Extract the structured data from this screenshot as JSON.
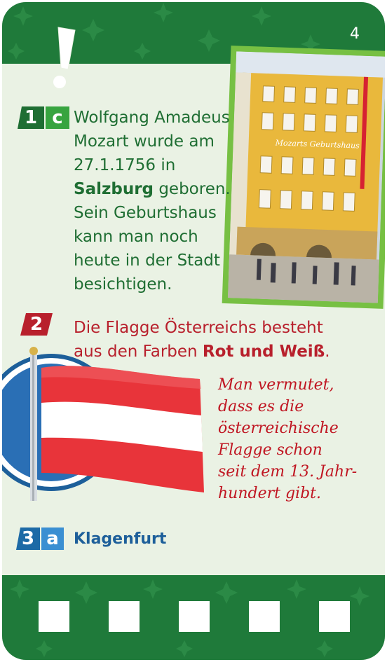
{
  "card": {
    "number": "4",
    "colors": {
      "green": "#1f7a3a",
      "red": "#b8202c",
      "blue": "#1d6aa6",
      "background": "#eaf2e4"
    }
  },
  "answer1": {
    "badge_number": "1",
    "badge_letter": "c",
    "line1": "Wolfgang Amadeus",
    "line2": "Mozart wurde am",
    "line3": "27.1.1756 in",
    "bold_place": "Salzburg",
    "line4_rest": " geboren.",
    "line5": "Sein Geburtshaus",
    "line6": "kann man noch",
    "line7": "heute in der Stadt",
    "line8": "besichtigen.",
    "photo_sign": "Mozarts Geburtshaus"
  },
  "answer2": {
    "badge_number": "2",
    "line1": "Die Flagge Österreichs besteht",
    "line2_pre": "aus den Farben ",
    "line2_bold": "Rot und Weiß",
    "line2_post": ".",
    "note_lines": [
      "Man vermutet,",
      "dass es die",
      "österreichische",
      "Flagge schon",
      "seit dem 13. Jahr-",
      "hundert gibt."
    ]
  },
  "answer3": {
    "badge_number": "3",
    "badge_letter": "a",
    "text": "Klagenfurt"
  }
}
